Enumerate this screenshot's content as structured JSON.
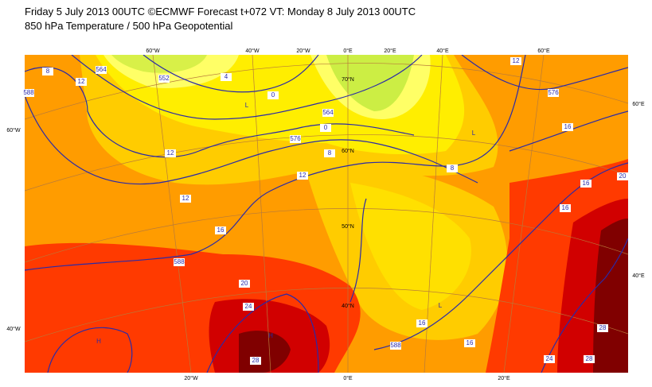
{
  "header": {
    "title": "Friday 5 July 2013 00UTC ©ECMWF Forecast t+072 VT: Monday 8 July 2013 00UTC",
    "subtitle": "850 hPa Temperature / 500 hPa Geopotential"
  },
  "map": {
    "graticule_labels": [
      "60°W",
      "40°W",
      "20°W",
      "0°E",
      "20°E",
      "40°E",
      "60°E",
      "20°W",
      "0°E",
      "20°E",
      "60°W",
      "40°W",
      "60°E",
      "40°E",
      "70°N",
      "60°N",
      "50°N",
      "40°N"
    ],
    "contour_labels": [
      "12",
      "12",
      "16",
      "588",
      "20",
      "24",
      "28",
      "12",
      "8",
      "576",
      "0",
      "564",
      "0",
      "552",
      "4",
      "12",
      "588",
      "564",
      "576",
      "12",
      "16",
      "16",
      "16",
      "20",
      "16",
      "16",
      "588",
      "24",
      "28",
      "28",
      "8",
      "8"
    ],
    "pressure_centers": [
      "H",
      "L",
      "L",
      "L",
      "H"
    ]
  }
}
